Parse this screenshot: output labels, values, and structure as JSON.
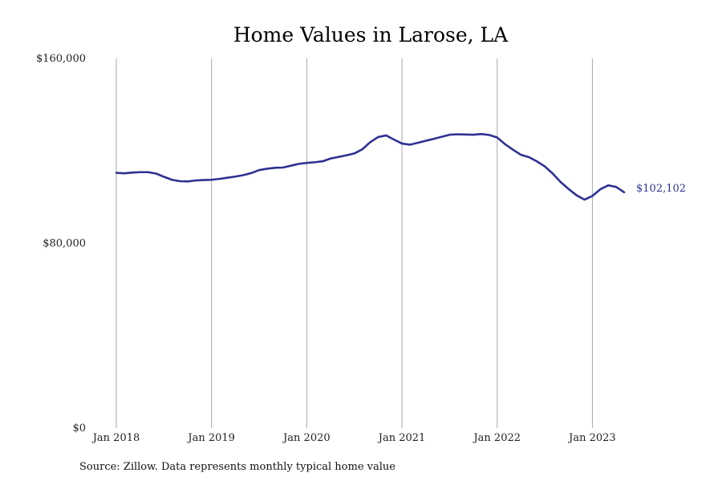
{
  "chart_data": {
    "type": "line",
    "title": "Home Values in Larose, LA",
    "source": "Source: Zillow. Data represents monthly typical home value",
    "xlabel": "",
    "ylabel": "",
    "ylim": [
      0,
      160000
    ],
    "y_ticks": [
      0,
      80000,
      160000
    ],
    "y_tick_labels": [
      "$0",
      "$80,000",
      "$160,000"
    ],
    "x_ticks": [
      "2018-01",
      "2019-01",
      "2020-01",
      "2021-01",
      "2022-01",
      "2023-01"
    ],
    "x_tick_labels": [
      "Jan 2018",
      "Jan 2019",
      "Jan 2020",
      "Jan 2021",
      "Jan 2022",
      "Jan 2023"
    ],
    "xlim": [
      "2018-01",
      "2023-05"
    ],
    "grid": "vertical",
    "line_color": "#2e3192",
    "end_label": "$102,102",
    "series": [
      {
        "x": [
          "2018-01",
          "2018-02",
          "2018-03",
          "2018-04",
          "2018-05",
          "2018-06",
          "2018-07",
          "2018-08",
          "2018-09",
          "2018-10",
          "2018-11",
          "2018-12",
          "2019-01",
          "2019-02",
          "2019-03",
          "2019-04",
          "2019-05",
          "2019-06",
          "2019-07",
          "2019-08",
          "2019-09",
          "2019-10",
          "2019-11",
          "2019-12",
          "2020-01",
          "2020-02",
          "2020-03",
          "2020-04",
          "2020-05",
          "2020-06",
          "2020-07",
          "2020-08",
          "2020-09",
          "2020-10",
          "2020-11",
          "2020-12",
          "2021-01",
          "2021-02",
          "2021-03",
          "2021-04",
          "2021-05",
          "2021-06",
          "2021-07",
          "2021-08",
          "2021-09",
          "2021-10",
          "2021-11",
          "2021-12",
          "2022-01",
          "2022-02",
          "2022-03",
          "2022-04",
          "2022-05",
          "2022-06",
          "2022-07",
          "2022-08",
          "2022-09",
          "2022-10",
          "2022-11",
          "2022-12",
          "2023-01",
          "2023-02",
          "2023-03",
          "2023-04",
          "2023-05"
        ],
        "values": [
          110500,
          110300,
          110600,
          110800,
          110800,
          110200,
          108800,
          107500,
          106900,
          106800,
          107200,
          107400,
          107500,
          107900,
          108400,
          108900,
          109500,
          110400,
          111700,
          112300,
          112700,
          112800,
          113600,
          114400,
          114800,
          115100,
          115500,
          116700,
          117400,
          118100,
          118900,
          120700,
          123800,
          126000,
          126700,
          124900,
          123200,
          122700,
          123500,
          124400,
          125200,
          126100,
          127000,
          127200,
          127100,
          127000,
          127300,
          126900,
          125800,
          122900,
          120500,
          118300,
          117300,
          115500,
          113300,
          110200,
          106500,
          103500,
          100800,
          98900,
          100500,
          103400,
          105100,
          104400,
          102102
        ]
      }
    ]
  }
}
